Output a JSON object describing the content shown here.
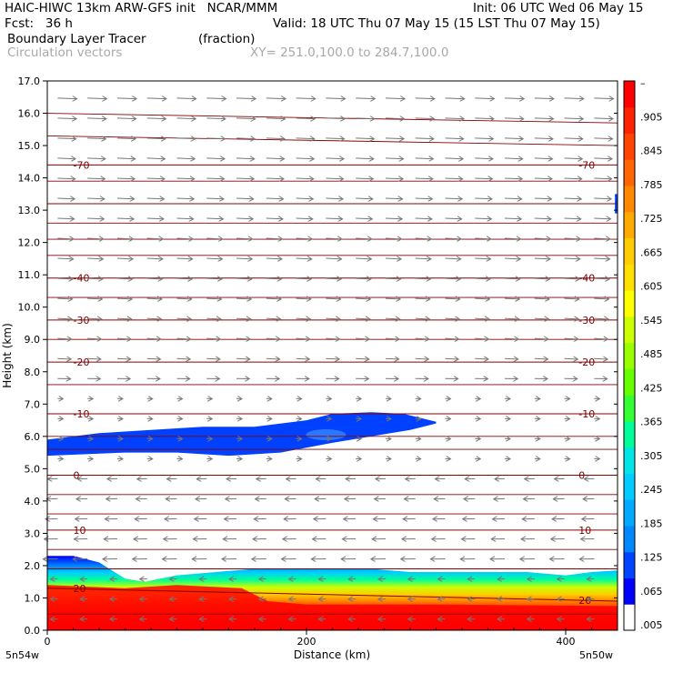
{
  "header": {
    "model_line": "HAIC-HIWC 13km ARW-GFS init   NCAR/MMM",
    "init": "Init: 06 UTC Wed 06 May 15",
    "fcst": "Fcst:   36 h",
    "valid": "Valid: 18 UTC Thu 07 May 15 (15 LST Thu 07 May 15)",
    "field": "Boundary Layer Tracer",
    "units": "(fraction)",
    "vectors": "Circulation vectors",
    "xy": "XY= 251.0,100.0 to 284.7,100.0"
  },
  "chart_data": {
    "type": "heatmap",
    "xlabel": "Distance (km)",
    "ylabel": "Height (km)",
    "xlim": [
      0,
      440
    ],
    "ylim": [
      0.0,
      17.0
    ],
    "x_ticks": [
      0,
      200,
      400
    ],
    "y_ticks": [
      0.0,
      1.0,
      2.0,
      3.0,
      4.0,
      5.0,
      6.0,
      7.0,
      8.0,
      9.0,
      10.0,
      11.0,
      12.0,
      13.0,
      14.0,
      15.0,
      16.0,
      17.0
    ],
    "x_end_labels": [
      "5n54w",
      "5n50w"
    ],
    "colorbar": {
      "labels": [
        ".005",
        ".065",
        ".125",
        ".185",
        ".245",
        ".305",
        ".365",
        ".425",
        ".485",
        ".545",
        ".605",
        ".665",
        ".725",
        ".785",
        ".845",
        ".905",
        "–"
      ],
      "colors": [
        "#ffffff",
        "#0000ff",
        "#0044ff",
        "#0088ff",
        "#00aaff",
        "#00ccff",
        "#00e6e6",
        "#00ff99",
        "#33ff33",
        "#66ff00",
        "#99ff00",
        "#ccff00",
        "#ffff00",
        "#ffe000",
        "#ffcc00",
        "#ffaa00",
        "#ff8800",
        "#ff6600",
        "#ff4400",
        "#ff2200",
        "#ff0000"
      ]
    },
    "isotherms": [
      {
        "label": "-70",
        "y0": 14.4,
        "y1": 14.4
      },
      {
        "label": "-40",
        "y0": 10.9,
        "y1": 10.9
      },
      {
        "label": "-30",
        "y0": 9.6,
        "y1": 9.6
      },
      {
        "label": "-20",
        "y0": 8.3,
        "y1": 8.3
      },
      {
        "label": "-10",
        "y0": 6.7,
        "y1": 6.7
      },
      {
        "label": "0",
        "y0": 4.8,
        "y1": 4.8
      },
      {
        "label": "10",
        "y0": 3.1,
        "y1": 3.1
      },
      {
        "label": "20",
        "y0": 1.3,
        "y1": 0.9
      }
    ]
  }
}
